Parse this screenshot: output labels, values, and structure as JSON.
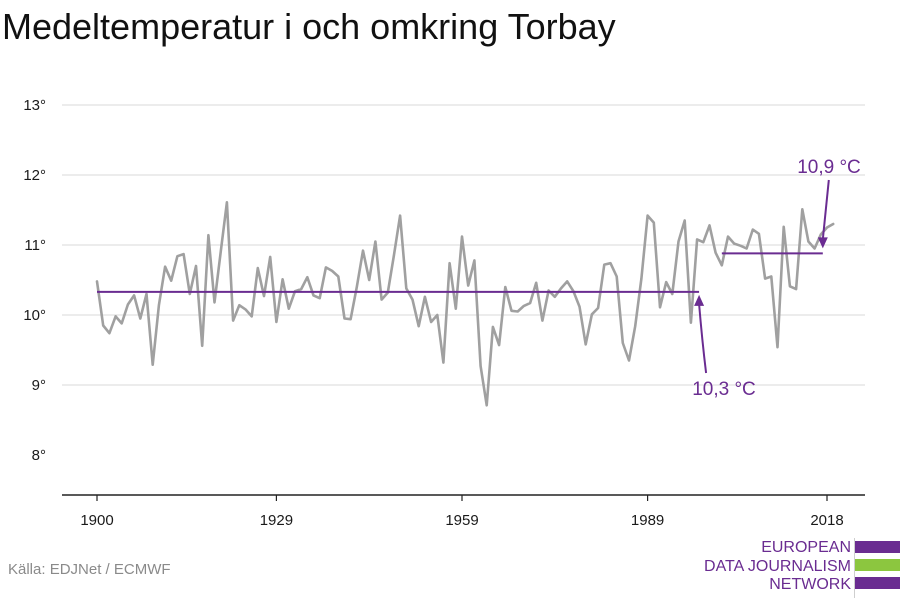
{
  "title": "Medeltemperatur i och omkring Torbay",
  "source": "Källa: EDJNet / ECMWF",
  "logo": {
    "lines": [
      "EUROPEAN",
      "DATA JOURNALISM",
      "NETWORK"
    ],
    "colors": {
      "purple": "#6a2c91",
      "green": "#8cc63f"
    }
  },
  "chart_data": {
    "type": "line",
    "title": "Medeltemperatur i och omkring Torbay",
    "xlabel": "",
    "ylabel": "",
    "x_ticks": [
      1900,
      1929,
      1959,
      1989,
      2018
    ],
    "y_ticks": [
      8,
      9,
      10,
      11,
      12,
      13
    ],
    "y_tick_labels": [
      "8°",
      "9°",
      "10°",
      "11°",
      "12°",
      "13°"
    ],
    "xlim": [
      1896,
      2025
    ],
    "ylim": [
      7.4,
      13.2
    ],
    "grid": true,
    "series": [
      {
        "color": "#a0a0a0",
        "x": [
          1900,
          1901,
          1902,
          1903,
          1904,
          1905,
          1906,
          1907,
          1908,
          1909,
          1910,
          1911,
          1912,
          1913,
          1914,
          1915,
          1916,
          1917,
          1918,
          1919,
          1920,
          1921,
          1922,
          1923,
          1924,
          1925,
          1926,
          1927,
          1928,
          1929,
          1930,
          1931,
          1932,
          1933,
          1934,
          1935,
          1936,
          1937,
          1938,
          1939,
          1940,
          1941,
          1942,
          1943,
          1944,
          1945,
          1946,
          1947,
          1948,
          1949,
          1950,
          1951,
          1952,
          1953,
          1954,
          1955,
          1956,
          1957,
          1958,
          1959,
          1960,
          1961,
          1962,
          1963,
          1964,
          1965,
          1966,
          1967,
          1968,
          1969,
          1970,
          1971,
          1972,
          1973,
          1974,
          1975,
          1976,
          1977,
          1978,
          1979,
          1980,
          1981,
          1982,
          1983,
          1984,
          1985,
          1986,
          1987,
          1988,
          1989,
          1990,
          1991,
          1992,
          1993,
          1994,
          1995,
          1996,
          1997,
          1998,
          1999,
          2000,
          2001,
          2002,
          2003,
          2004,
          2005,
          2006,
          2007,
          2008,
          2009,
          2010,
          2011,
          2012,
          2013,
          2014,
          2015,
          2016,
          2017,
          2018,
          2019
        ],
        "values": [
          10.48,
          9.85,
          9.74,
          9.98,
          9.88,
          10.15,
          10.28,
          9.95,
          10.3,
          9.29,
          10.14,
          10.69,
          10.49,
          10.84,
          10.87,
          10.3,
          10.7,
          9.56,
          11.14,
          10.18,
          10.9,
          11.61,
          9.92,
          10.14,
          10.08,
          9.98,
          10.67,
          10.27,
          10.83,
          9.9,
          10.51,
          10.09,
          10.34,
          10.37,
          10.54,
          10.28,
          10.24,
          10.68,
          10.63,
          10.55,
          9.95,
          9.94,
          10.4,
          10.92,
          10.5,
          11.05,
          10.22,
          10.32,
          10.85,
          11.42,
          10.38,
          10.22,
          9.84,
          10.26,
          9.9,
          10.0,
          9.32,
          10.74,
          10.09,
          11.12,
          10.42,
          10.78,
          9.27,
          8.71,
          9.83,
          9.57,
          10.4,
          10.06,
          10.05,
          10.13,
          10.17,
          10.46,
          9.92,
          10.35,
          10.26,
          10.38,
          10.48,
          10.34,
          10.12,
          9.58,
          10.01,
          10.1,
          10.72,
          10.74,
          10.55,
          9.6,
          9.35,
          9.84,
          10.52,
          11.42,
          11.32,
          10.11,
          10.47,
          10.3,
          11.05,
          11.35,
          9.89,
          11.08,
          11.04,
          11.28,
          10.89,
          10.71,
          11.12,
          11.02,
          10.99,
          10.95,
          11.22,
          11.16,
          10.52,
          10.55,
          9.54,
          11.26,
          10.41,
          10.37,
          11.51,
          11.05,
          10.95,
          11.15,
          11.25,
          11.3
        ]
      }
    ],
    "annotations": [
      {
        "text": "10,3 °C",
        "value": 10.33,
        "x_start": 1900,
        "x_end": 1997,
        "arrow_to_x": 1997
      },
      {
        "text": "10,9 °C",
        "value": 10.88,
        "x_start": 2001,
        "x_end": 2017,
        "arrow_to_x": 2017
      }
    ],
    "annotation_color": "#6a2c91"
  }
}
